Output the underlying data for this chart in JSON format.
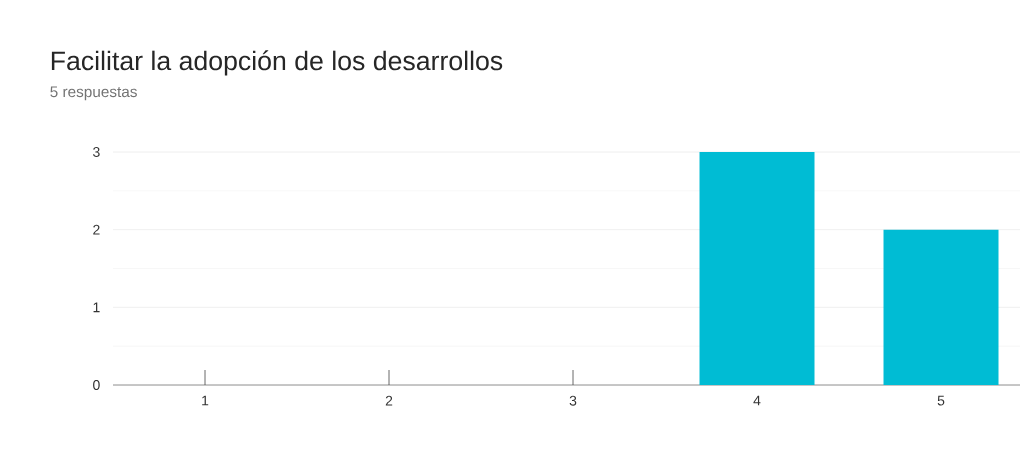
{
  "chart_data": {
    "type": "bar",
    "title": "Facilitar la adopción de los desarrollos",
    "subtitle": "5 respuestas",
    "categories": [
      "1",
      "2",
      "3",
      "4",
      "5"
    ],
    "values": [
      0,
      0,
      0,
      3,
      2
    ],
    "color": "#00bcd4",
    "ylim": [
      0,
      3
    ],
    "yticks": [
      0,
      1,
      2,
      3
    ],
    "grid": "y"
  }
}
